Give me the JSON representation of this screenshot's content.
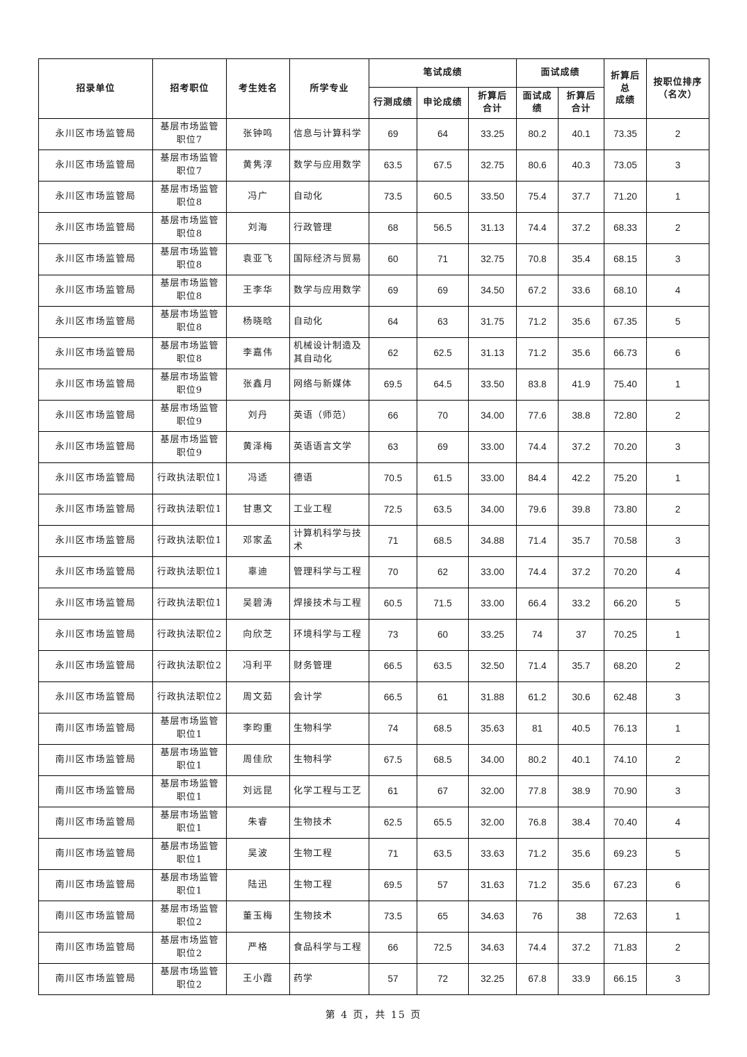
{
  "page": {
    "footer": "第 4 页，共 15 页"
  },
  "table": {
    "headers": {
      "unit": "招录单位",
      "position": "招考职位",
      "name": "考生姓名",
      "major": "所学专业",
      "written_group": "笔试成绩",
      "interview_group": "面试成绩",
      "xingce": "行测成绩",
      "shenlun": "申论成绩",
      "written_converted": "折算后\n合计",
      "interview_score": "面试成绩",
      "interview_converted": "折算后\n合计",
      "total": "折算后总\n成绩",
      "rank": "按职位排序\n（名次）"
    },
    "rows": [
      [
        "永川区市场监管局",
        "基层市场监管\n职位7",
        "张钟鸣",
        "信息与计算科学",
        "69",
        "64",
        "33.25",
        "80.2",
        "40.1",
        "73.35",
        "2"
      ],
      [
        "永川区市场监管局",
        "基层市场监管\n职位7",
        "黄隽淳",
        "数学与应用数学",
        "63.5",
        "67.5",
        "32.75",
        "80.6",
        "40.3",
        "73.05",
        "3"
      ],
      [
        "永川区市场监管局",
        "基层市场监管\n职位8",
        "冯广",
        "自动化",
        "73.5",
        "60.5",
        "33.50",
        "75.4",
        "37.7",
        "71.20",
        "1"
      ],
      [
        "永川区市场监管局",
        "基层市场监管\n职位8",
        "刘海",
        "行政管理",
        "68",
        "56.5",
        "31.13",
        "74.4",
        "37.2",
        "68.33",
        "2"
      ],
      [
        "永川区市场监管局",
        "基层市场监管\n职位8",
        "袁亚飞",
        "国际经济与贸易",
        "60",
        "71",
        "32.75",
        "70.8",
        "35.4",
        "68.15",
        "3"
      ],
      [
        "永川区市场监管局",
        "基层市场监管\n职位8",
        "王李华",
        "数学与应用数学",
        "69",
        "69",
        "34.50",
        "67.2",
        "33.6",
        "68.10",
        "4"
      ],
      [
        "永川区市场监管局",
        "基层市场监管\n职位8",
        "杨晓晗",
        "自动化",
        "64",
        "63",
        "31.75",
        "71.2",
        "35.6",
        "67.35",
        "5"
      ],
      [
        "永川区市场监管局",
        "基层市场监管\n职位8",
        "李嘉伟",
        "机械设计制造及其自动化",
        "62",
        "62.5",
        "31.13",
        "71.2",
        "35.6",
        "66.73",
        "6"
      ],
      [
        "永川区市场监管局",
        "基层市场监管\n职位9",
        "张鑫月",
        "网络与新媒体",
        "69.5",
        "64.5",
        "33.50",
        "83.8",
        "41.9",
        "75.40",
        "1"
      ],
      [
        "永川区市场监管局",
        "基层市场监管\n职位9",
        "刘丹",
        "英语（师范）",
        "66",
        "70",
        "34.00",
        "77.6",
        "38.8",
        "72.80",
        "2"
      ],
      [
        "永川区市场监管局",
        "基层市场监管\n职位9",
        "黄泽梅",
        "英语语言文学",
        "63",
        "69",
        "33.00",
        "74.4",
        "37.2",
        "70.20",
        "3"
      ],
      [
        "永川区市场监管局",
        "行政执法职位1",
        "冯适",
        "德语",
        "70.5",
        "61.5",
        "33.00",
        "84.4",
        "42.2",
        "75.20",
        "1"
      ],
      [
        "永川区市场监管局",
        "行政执法职位1",
        "甘惠文",
        "工业工程",
        "72.5",
        "63.5",
        "34.00",
        "79.6",
        "39.8",
        "73.80",
        "2"
      ],
      [
        "永川区市场监管局",
        "行政执法职位1",
        "邓家孟",
        "计算机科学与技术",
        "71",
        "68.5",
        "34.88",
        "71.4",
        "35.7",
        "70.58",
        "3"
      ],
      [
        "永川区市场监管局",
        "行政执法职位1",
        "辜迪",
        "管理科学与工程",
        "70",
        "62",
        "33.00",
        "74.4",
        "37.2",
        "70.20",
        "4"
      ],
      [
        "永川区市场监管局",
        "行政执法职位1",
        "吴碧涛",
        "焊接技术与工程",
        "60.5",
        "71.5",
        "33.00",
        "66.4",
        "33.2",
        "66.20",
        "5"
      ],
      [
        "永川区市场监管局",
        "行政执法职位2",
        "向欣芝",
        "环境科学与工程",
        "73",
        "60",
        "33.25",
        "74",
        "37",
        "70.25",
        "1"
      ],
      [
        "永川区市场监管局",
        "行政执法职位2",
        "冯利平",
        "财务管理",
        "66.5",
        "63.5",
        "32.50",
        "71.4",
        "35.7",
        "68.20",
        "2"
      ],
      [
        "永川区市场监管局",
        "行政执法职位2",
        "周文茹",
        "会计学",
        "66.5",
        "61",
        "31.88",
        "61.2",
        "30.6",
        "62.48",
        "3"
      ],
      [
        "南川区市场监管局",
        "基层市场监管\n职位1",
        "李昀重",
        "生物科学",
        "74",
        "68.5",
        "35.63",
        "81",
        "40.5",
        "76.13",
        "1"
      ],
      [
        "南川区市场监管局",
        "基层市场监管\n职位1",
        "周佳欣",
        "生物科学",
        "67.5",
        "68.5",
        "34.00",
        "80.2",
        "40.1",
        "74.10",
        "2"
      ],
      [
        "南川区市场监管局",
        "基层市场监管\n职位1",
        "刘远昆",
        "化学工程与工艺",
        "61",
        "67",
        "32.00",
        "77.8",
        "38.9",
        "70.90",
        "3"
      ],
      [
        "南川区市场监管局",
        "基层市场监管\n职位1",
        "朱睿",
        "生物技术",
        "62.5",
        "65.5",
        "32.00",
        "76.8",
        "38.4",
        "70.40",
        "4"
      ],
      [
        "南川区市场监管局",
        "基层市场监管\n职位1",
        "吴波",
        "生物工程",
        "71",
        "63.5",
        "33.63",
        "71.2",
        "35.6",
        "69.23",
        "5"
      ],
      [
        "南川区市场监管局",
        "基层市场监管\n职位1",
        "陆迅",
        "生物工程",
        "69.5",
        "57",
        "31.63",
        "71.2",
        "35.6",
        "67.23",
        "6"
      ],
      [
        "南川区市场监管局",
        "基层市场监管\n职位2",
        "董玉梅",
        "生物技术",
        "73.5",
        "65",
        "34.63",
        "76",
        "38",
        "72.63",
        "1"
      ],
      [
        "南川区市场监管局",
        "基层市场监管\n职位2",
        "严格",
        "食品科学与工程",
        "66",
        "72.5",
        "34.63",
        "74.4",
        "37.2",
        "71.83",
        "2"
      ],
      [
        "南川区市场监管局",
        "基层市场监管\n职位2",
        "王小霞",
        "药学",
        "57",
        "72",
        "32.25",
        "67.8",
        "33.9",
        "66.15",
        "3"
      ]
    ]
  }
}
